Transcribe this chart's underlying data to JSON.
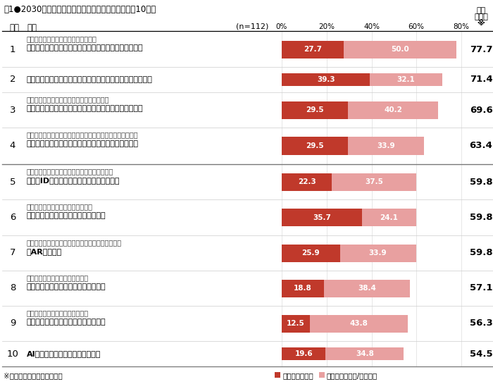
{
  "rows": [
    {
      "rank": "1",
      "label_small": "家電制御や見守りなどの機能を備えた",
      "label_bold": "「新築住宅（マンションを含む）のスマートホーム化」",
      "val1": 27.7,
      "val2": 50.0,
      "total": "77.7"
    },
    {
      "rank": "2",
      "label_small": "",
      "label_bold": "「バイオデグラダブル（生分解性）」の製品、包装、緩衝材",
      "val1": 39.3,
      "val2": 32.1,
      "total": "71.4"
    },
    {
      "rank": "3",
      "label_small": "無人の「工場、店舗、物流倉庫、宅配搬送」",
      "label_bold": "（製品の生産、物流、販売等を作業用ロボットが行う）",
      "val1": 29.5,
      "val2": 40.2,
      "total": "69.6"
    },
    {
      "rank": "4",
      "label_small": "人工衛星・気象観測データ等を活用した「リアルタイムの高",
      "label_bold": "空間・高時間解像度気象予測」と「災害リスク評価」",
      "val1": 29.5,
      "val2": 33.9,
      "total": "63.4"
    },
    {
      "rank": "5",
      "label_small": "医療・介護・ヘルスケアを網羅した健康カルテ",
      "label_bold": "（共通IDによる医療連携ソリューション）",
      "val1": 22.3,
      "val2": 37.5,
      "total": "59.8"
    },
    {
      "rank": "6",
      "label_small": "自然災害や事故などにも対応可能な",
      "label_bold": "リアルタイムナビゲーションシステム",
      "val1": 35.7,
      "val2": 24.1,
      "total": "59.8"
    },
    {
      "rank": "7",
      "label_small": "地理情報や天候などのリアルタイム情報を表示する",
      "label_bold": "「ARグラス」",
      "val1": 25.9,
      "val2": 33.9,
      "total": "59.8"
    },
    {
      "rank": "8",
      "label_small": "移動、レジャー、食事、衣服など",
      "label_bold": "幅広い分野のシェアリングエコノミー",
      "val1": 18.8,
      "val2": 38.4,
      "total": "57.1"
    },
    {
      "rank": "9",
      "label_small": "出社不要、複数の職業を持つなど",
      "label_bold": "「自由度の高い働き方」ができる社会",
      "val1": 12.5,
      "val2": 43.8,
      "total": "56.3"
    },
    {
      "rank": "10",
      "label_small": "",
      "label_bold": "AIによる診断推論、薬剤の最適化",
      "val1": 19.6,
      "val2": 34.8,
      "total": "54.5"
    }
  ],
  "color1": "#c0392b",
  "color2": "#e8a0a0",
  "footnote": "※市場導入計の降順でソート",
  "legend1": "国内で広く普及",
  "legend2": "国内で一部普及/市場導入",
  "axis_ticks": [
    0,
    20,
    40,
    60,
    80
  ],
  "bg_color": "#ffffff",
  "header_rank": "順位",
  "header_item": "項目",
  "n_label": "(n=112)",
  "market_header_1": "市場",
  "market_header_2": "導入計",
  "market_header_3": "※",
  "separator_after_index": 4
}
